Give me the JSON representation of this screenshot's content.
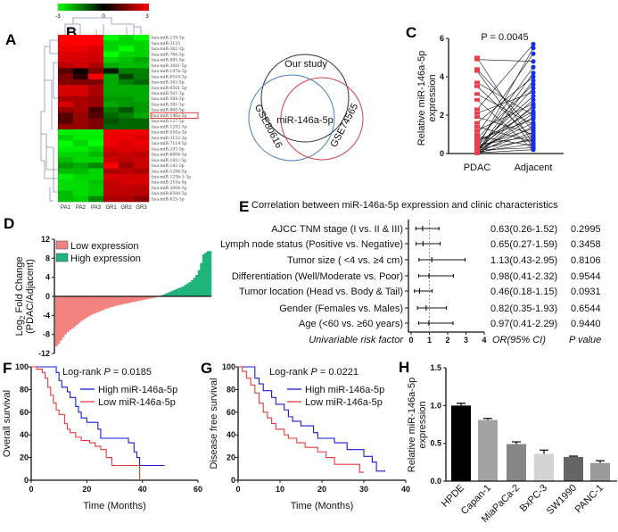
{
  "panel_labels": [
    "A",
    "B",
    "C",
    "D",
    "E",
    "F",
    "G",
    "H"
  ],
  "chart_data": [
    {
      "panel": "A",
      "type": "heatmap",
      "colorscale": {
        "min": -3,
        "mid": 0,
        "max": 3,
        "colors": [
          "#00ff00",
          "#000000",
          "#ff0000"
        ],
        "tick_labels": [
          "-3",
          "0",
          "3"
        ]
      },
      "columns": [
        "PA1",
        "PA2",
        "PA3",
        "GR1",
        "GR2",
        "GR3"
      ],
      "highlighted_row": "hsa-miR-146a-5p",
      "highlight_color": "#e02020",
      "rows": [
        "hsa-miR-139-3p",
        "hsa-miR-3125",
        "hsa-miR-382-3p",
        "hsa-miR-766-3p",
        "hsa-miR-885-5p",
        "hsa-miR-3681-5p",
        "hsa-miR-147b-3p",
        "hsa-miR-6510-3p",
        "hsa-miR-362-5p",
        "hsa-miR-6501-5p",
        "hsa-miR-501-3p",
        "hsa-miR-584-3p",
        "hsa-miR-381-3p",
        "hsa-miR-660-5p",
        "hsa-miR-146a-5p",
        "hsa-miR-127-3p",
        "hsa-miR-1292-3p",
        "hsa-miR-550a-3p",
        "hsa-miR-3152-3p",
        "hsa-miR-7114-5p",
        "hsa-miR-197-5p",
        "hsa-miR-6806-3p",
        "hsa-miR-181c-5p",
        "hsa-miR-143-3p",
        "hsa-miR-1288-5p",
        "hsa-miR-125b-1-3p",
        "hsa-miR-219a-5p",
        "hsa-miR-200b-5p",
        "hsa-miR-6500-3p",
        "hsa-miR-625-3p"
      ],
      "values": [
        [
          3,
          3,
          3,
          -3,
          -2.5,
          -3
        ],
        [
          3,
          3,
          3,
          -2.5,
          -2.5,
          -2.5
        ],
        [
          2.8,
          2.8,
          2.6,
          -2.5,
          -3,
          -2.5
        ],
        [
          2.6,
          2.6,
          2.5,
          -3,
          -2.5,
          -2.5
        ],
        [
          2.5,
          2.5,
          2.4,
          -2.5,
          -2.3,
          -2
        ],
        [
          2.2,
          2.4,
          2,
          -2,
          -2.2,
          -2.2
        ],
        [
          1,
          0.2,
          1.5,
          -0.3,
          -1.5,
          -1.5
        ],
        [
          1.5,
          0.5,
          3,
          -2,
          -0.8,
          -1.5
        ],
        [
          1.5,
          1.5,
          1.5,
          -2,
          -1.5,
          -1.2
        ],
        [
          2.5,
          2.5,
          2,
          -2,
          -2,
          -2
        ],
        [
          2.5,
          2.5,
          2,
          -2,
          -2,
          -2
        ],
        [
          2,
          2,
          1.8,
          -1.8,
          -1.8,
          -2
        ],
        [
          2.5,
          2,
          1.8,
          -2,
          -1.8,
          -1.8
        ],
        [
          1.8,
          2,
          0.8,
          -1.5,
          -1,
          -1.8
        ],
        [
          1,
          1.8,
          1,
          -1.2,
          -1.5,
          -2
        ],
        [
          1,
          1.8,
          1.5,
          -1,
          -1.2,
          -1.2
        ],
        [
          1.8,
          1.8,
          1.5,
          -1.2,
          -1.2,
          -1.2
        ],
        [
          -2.8,
          -2.8,
          -2.8,
          2.8,
          2.8,
          2.8
        ],
        [
          -2.5,
          -2.8,
          -2.8,
          2.8,
          2.8,
          2.6
        ],
        [
          -3,
          -2.5,
          -3,
          2.8,
          2.6,
          2.8
        ],
        [
          -2.8,
          -2.8,
          -2.5,
          2.5,
          2.6,
          2.6
        ],
        [
          -2.5,
          -2.5,
          -2.2,
          2.2,
          2.4,
          2.2
        ],
        [
          -2.2,
          -2.5,
          -2.5,
          2.4,
          2.2,
          2.4
        ],
        [
          -1.8,
          -2,
          -1.6,
          3,
          1.8,
          2.4
        ],
        [
          -2.2,
          -2.2,
          -2.5,
          2,
          2.2,
          2
        ],
        [
          -2.8,
          -2.5,
          -2.5,
          2.5,
          2.5,
          2.5
        ],
        [
          -2.6,
          -2.6,
          -2.3,
          2.3,
          2.5,
          2.5
        ],
        [
          -2.6,
          -2.6,
          -2.4,
          2.3,
          2.3,
          2.2
        ],
        [
          -2.2,
          -2.6,
          -2.4,
          2.2,
          2.2,
          2.1
        ],
        [
          -2.2,
          -2.4,
          -1.6,
          2,
          2,
          1.6
        ]
      ]
    },
    {
      "panel": "B",
      "type": "venn",
      "sets": [
        {
          "name": "Our study",
          "color": "#333333"
        },
        {
          "name": "GSE80616",
          "color": "#4a7fc0"
        },
        {
          "name": "GSE74565",
          "color": "#d04050"
        }
      ],
      "intersection_label": "miR-146a-5p"
    },
    {
      "panel": "C",
      "type": "scatter",
      "subtype": "paired",
      "annotation": "P = 0.0045",
      "ylabel": "Relative miR-146a-5p expression",
      "categories": [
        "PDAC",
        "Adjacent"
      ],
      "ylim": [
        0,
        6
      ],
      "yticks": [
        "0",
        "2",
        "4",
        "6"
      ],
      "colors": {
        "PDAC": "#e8404a",
        "Adjacent": "#1a2ee0",
        "lines": "#111111"
      },
      "pairs": [
        [
          5.0,
          0.5
        ],
        [
          4.9,
          4.8
        ],
        [
          4.4,
          1.2
        ],
        [
          4.3,
          0.3
        ],
        [
          3.7,
          2.0
        ],
        [
          3.5,
          0.8
        ],
        [
          3.1,
          1.5
        ],
        [
          2.8,
          0.2
        ],
        [
          2.3,
          5.7
        ],
        [
          2.1,
          3.2
        ],
        [
          1.9,
          1.0
        ],
        [
          1.6,
          4.0
        ],
        [
          1.4,
          0.6
        ],
        [
          1.2,
          2.6
        ],
        [
          1.0,
          5.2
        ],
        [
          0.9,
          0.4
        ],
        [
          0.8,
          3.6
        ],
        [
          0.7,
          1.8
        ],
        [
          0.6,
          2.2
        ],
        [
          0.5,
          4.5
        ],
        [
          0.45,
          0.9
        ],
        [
          0.4,
          3.0
        ],
        [
          0.35,
          1.3
        ],
        [
          0.3,
          5.5
        ],
        [
          0.28,
          2.4
        ],
        [
          0.25,
          0.7
        ],
        [
          0.22,
          1.6
        ],
        [
          0.2,
          3.4
        ],
        [
          0.18,
          0.3
        ],
        [
          0.15,
          2.8
        ],
        [
          0.12,
          1.1
        ],
        [
          0.1,
          4.2
        ],
        [
          0.08,
          0.5
        ],
        [
          0.06,
          1.9
        ],
        [
          0.05,
          2.1
        ],
        [
          0.04,
          0.2
        ],
        [
          0.03,
          3.8
        ],
        [
          0.02,
          1.4
        ],
        [
          0.02,
          0.8
        ],
        [
          0.01,
          2.5
        ]
      ]
    },
    {
      "panel": "D",
      "type": "bar",
      "subtype": "waterfall",
      "ylabel": "Log2 Fold Change (PDAC/Adjacent)",
      "ylim": [
        -12,
        12
      ],
      "yticks": [
        "12",
        "8",
        "4",
        "0",
        "-4",
        "-8",
        "-12"
      ],
      "legend": [
        {
          "name": "Low  expression",
          "color": "#f4837f"
        },
        {
          "name": "High expression",
          "color": "#1fb47a"
        }
      ],
      "legend_placement": "top-left",
      "values": [
        -10.5,
        -10,
        -9.3,
        -8.6,
        -8,
        -7.5,
        -7.1,
        -6.8,
        -6.4,
        -6,
        -5.6,
        -5.2,
        -4.9,
        -4.6,
        -4.3,
        -4,
        -3.8,
        -3.6,
        -3.4,
        -3.2,
        -3,
        -2.8,
        -2.6,
        -2.5,
        -2.3,
        -2.2,
        -2,
        -1.9,
        -1.8,
        -1.7,
        -1.6,
        -1.5,
        -1.4,
        -1.3,
        -1.2,
        -1.1,
        -1,
        -0.9,
        -0.8,
        -0.7,
        -0.6,
        -0.5,
        -0.4,
        -0.3,
        -0.2,
        -0.1,
        0.1,
        0.3,
        0.5,
        0.7,
        0.9,
        1.1,
        1.3,
        1.5,
        1.7,
        1.9,
        2.1,
        2.4,
        2.7,
        3.0,
        3.4,
        3.9,
        4.5,
        5.5,
        7,
        8.8,
        9.2,
        9.5,
        9.5
      ]
    },
    {
      "panel": "E",
      "type": "forest",
      "title": "Correlation between miR-146a-5p expression and clinic characteristics",
      "xlim": [
        0,
        4
      ],
      "xticks": [
        "0",
        "1",
        "2",
        "3",
        "4"
      ],
      "reference_line": 1,
      "footer": {
        "label": "Univariable risk factor",
        "or_header": "OR(95% CI)",
        "p_header": "P value"
      },
      "rows": [
        {
          "label": "AJCC TNM stage (I vs. II & III)",
          "or": 0.63,
          "low": 0.26,
          "high": 1.52,
          "or_text": "0.63(0.26-1.52)",
          "p": "0.2995"
        },
        {
          "label": "Lymph node status (Positive vs. Negative)",
          "or": 0.65,
          "low": 0.27,
          "high": 1.59,
          "or_text": "0.65(0.27-1.59)",
          "p": "0.3458"
        },
        {
          "label": "Tumor size ( <4 vs. ≥4 cm)",
          "or": 1.13,
          "low": 0.43,
          "high": 2.95,
          "or_text": "1.13(0.43-2.95)",
          "p": "0.8106"
        },
        {
          "label": "Differentiation (Well/Moderate vs. Poor)",
          "or": 0.98,
          "low": 0.41,
          "high": 2.32,
          "or_text": "0.98(0.41-2.32)",
          "p": "0.9544"
        },
        {
          "label": "Tumor location (Head vs. Body & Tail)",
          "or": 0.46,
          "low": 0.18,
          "high": 1.15,
          "or_text": "0.46(0.18-1.15)",
          "p": "0.0931"
        },
        {
          "label": "Gender (Females vs. Males)",
          "or": 0.82,
          "low": 0.35,
          "high": 1.93,
          "or_text": "0.82(0.35-1.93)",
          "p": "0.6544"
        },
        {
          "label": "Age (<60 vs. ≥60 years)",
          "or": 0.97,
          "low": 0.41,
          "high": 2.29,
          "or_text": "0.97(0.41-2.29)",
          "p": "0.9440"
        }
      ]
    },
    {
      "panel": "F",
      "type": "line",
      "subtype": "kaplan-meier",
      "annotation_prefix": "Log-rank ",
      "annotation_p": "P",
      "annotation_value": " = 0.0185",
      "xlabel": "Time (Months)",
      "ylabel": "Overall survival",
      "xlim": [
        0,
        60
      ],
      "ylim": [
        0,
        100
      ],
      "xticks": [
        "0",
        "20",
        "40",
        "60"
      ],
      "yticks": [
        "0",
        "20",
        "40",
        "60",
        "80",
        "100"
      ],
      "series": [
        {
          "name": "High miR-146a-5p",
          "color": "#1a1ad8",
          "points": [
            [
              0,
              100
            ],
            [
              8,
              100
            ],
            [
              9,
              95
            ],
            [
              10,
              88
            ],
            [
              11,
              82
            ],
            [
              13,
              78
            ],
            [
              14,
              73
            ],
            [
              16,
              65
            ],
            [
              17,
              60
            ],
            [
              18,
              55
            ],
            [
              20,
              51
            ],
            [
              24,
              45
            ],
            [
              25,
              37
            ],
            [
              33,
              37
            ],
            [
              35,
              33
            ],
            [
              37,
              25
            ],
            [
              38,
              20
            ],
            [
              39,
              13
            ],
            [
              48,
              13
            ]
          ]
        },
        {
          "name": "Low  miR-146a-5p",
          "color": "#e83a3a",
          "points": [
            [
              0,
              100
            ],
            [
              2,
              98
            ],
            [
              4,
              95
            ],
            [
              5,
              90
            ],
            [
              6,
              82
            ],
            [
              7,
              75
            ],
            [
              8,
              68
            ],
            [
              9,
              62
            ],
            [
              10,
              58
            ],
            [
              12,
              50
            ],
            [
              13,
              45
            ],
            [
              14,
              42
            ],
            [
              16,
              38
            ],
            [
              18,
              35
            ],
            [
              21,
              33
            ],
            [
              23,
              30
            ],
            [
              25,
              27
            ],
            [
              27,
              20
            ],
            [
              29,
              13
            ],
            [
              39,
              13
            ],
            [
              39,
              0
            ]
          ]
        }
      ]
    },
    {
      "panel": "G",
      "type": "line",
      "subtype": "kaplan-meier",
      "annotation_prefix": "Log-rank ",
      "annotation_p": "P",
      "annotation_value": " = 0.0221",
      "xlabel": "Time (Months)",
      "ylabel": "Disease free survival",
      "xlim": [
        0,
        40
      ],
      "ylim": [
        0,
        100
      ],
      "xticks": [
        "0",
        "10",
        "20",
        "30",
        "40"
      ],
      "yticks": [
        "0",
        "20",
        "40",
        "60",
        "80",
        "100"
      ],
      "series": [
        {
          "name": "High miR-146a-5p",
          "color": "#1a1ad8",
          "points": [
            [
              0,
              100
            ],
            [
              4,
              100
            ],
            [
              4,
              90
            ],
            [
              5,
              85
            ],
            [
              6,
              79
            ],
            [
              8,
              73
            ],
            [
              9,
              67
            ],
            [
              11,
              62
            ],
            [
              12,
              56
            ],
            [
              13,
              52
            ],
            [
              15,
              48
            ],
            [
              18,
              42
            ],
            [
              19,
              37
            ],
            [
              23,
              33
            ],
            [
              26,
              27
            ],
            [
              30,
              21
            ],
            [
              32,
              16
            ],
            [
              33,
              8
            ],
            [
              35,
              9
            ]
          ]
        },
        {
          "name": "Low  miR-146a-5p",
          "color": "#e83a3a",
          "points": [
            [
              0,
              100
            ],
            [
              1,
              96
            ],
            [
              2,
              90
            ],
            [
              3,
              84
            ],
            [
              4,
              77
            ],
            [
              5,
              68
            ],
            [
              6,
              60
            ],
            [
              7,
              55
            ],
            [
              8,
              50
            ],
            [
              9,
              45
            ],
            [
              11,
              40
            ],
            [
              12,
              37
            ],
            [
              14,
              33
            ],
            [
              16,
              29
            ],
            [
              19,
              25
            ],
            [
              21,
              20
            ],
            [
              23,
              14
            ],
            [
              29,
              7
            ],
            [
              30,
              7
            ]
          ]
        }
      ]
    },
    {
      "panel": "H",
      "type": "bar",
      "ylabel": "Relative miR-146a-5p expression",
      "ylim": [
        0,
        1.5
      ],
      "yticks": [
        "0.0",
        "0.5",
        "1.0",
        "1.5"
      ],
      "categories": [
        "HPDE",
        "Capan-1",
        "MiaPaCa-2",
        "BxPC-3",
        "SW1990",
        "PANC-1"
      ],
      "values": [
        1.0,
        0.81,
        0.49,
        0.36,
        0.32,
        0.24
      ],
      "errors": [
        0.03,
        0.02,
        0.03,
        0.05,
        0.01,
        0.03
      ],
      "colors": [
        "#000000",
        "#a3a3a3",
        "#868686",
        "#d3d3d3",
        "#646464",
        "#9a9a9a"
      ]
    }
  ]
}
